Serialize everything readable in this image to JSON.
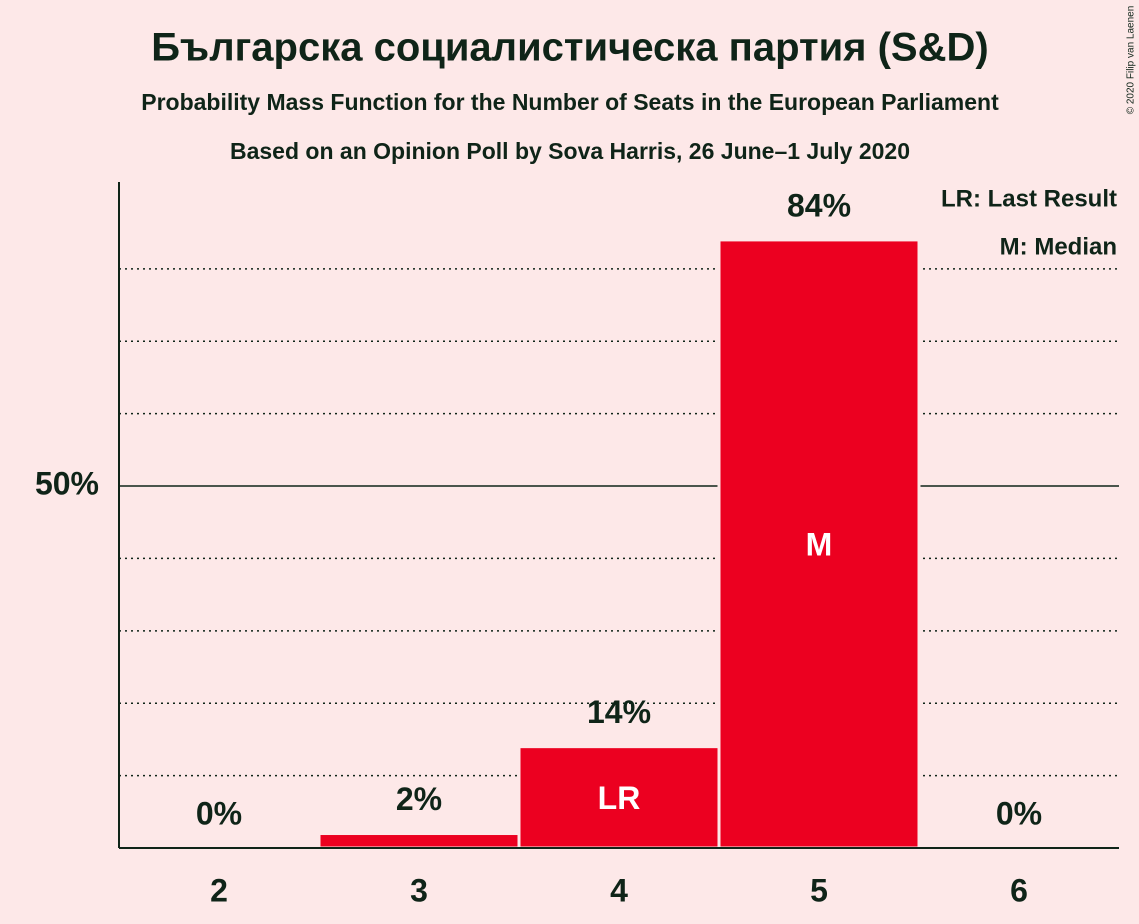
{
  "chart_data": {
    "type": "bar",
    "title": "Българска социалистическа партия (S&D)",
    "subtitle": "Probability Mass Function for the Number of Seats in the European Parliament",
    "subtitle_2": "Based on an Opinion Poll by Sova Harris, 26 June–1 July 2020",
    "copyright": "© 2020 Filip van Laenen",
    "categories": [
      "2",
      "3",
      "4",
      "5",
      "6"
    ],
    "values": [
      0,
      2,
      14,
      84,
      0
    ],
    "value_labels": [
      "0%",
      "2%",
      "14%",
      "84%",
      "0%"
    ],
    "bar_labels": [
      null,
      null,
      "LR",
      "M",
      null
    ],
    "legend": [
      "LR: Last Result",
      "M: Median"
    ],
    "color": "#ec0020",
    "ylim": [
      0,
      92
    ],
    "yticks": [
      {
        "value": 50,
        "label": "50%"
      }
    ],
    "minor_gridlines": [
      10,
      20,
      30,
      40,
      60,
      70,
      80
    ],
    "grid": true
  }
}
